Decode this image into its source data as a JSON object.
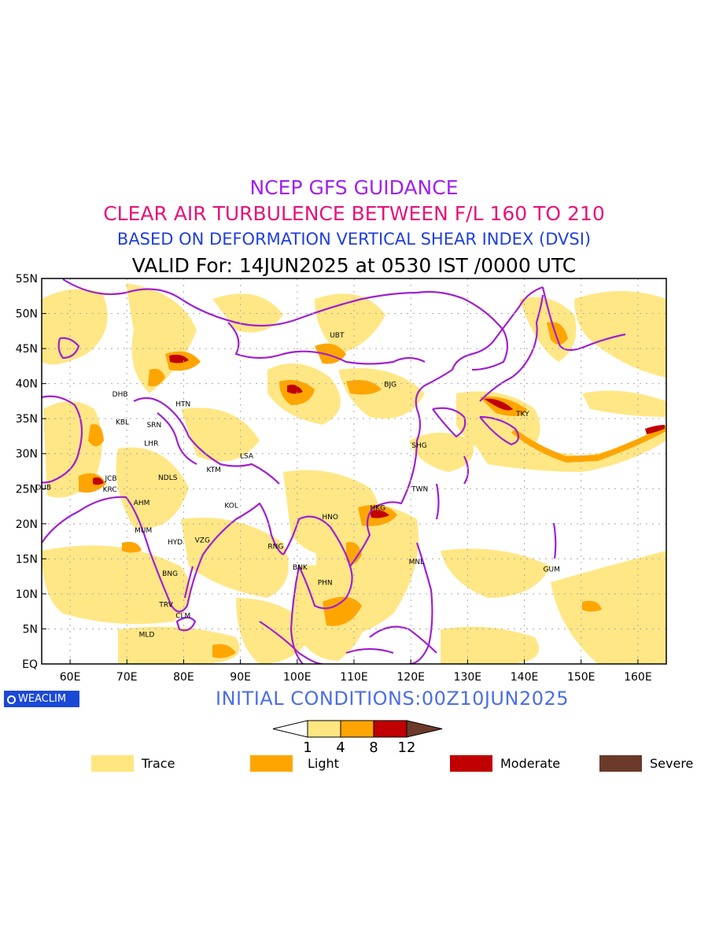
{
  "titles": {
    "line1": "NCEP GFS GUIDANCE",
    "line2": "CLEAR AIR TURBULENCE BETWEEN F/L 160 TO 210",
    "line3": "BASED ON DEFORMATION VERTICAL SHEAR INDEX (DVSI)",
    "line4": "VALID For: 14JUN2025 at 0530 IST /0000 UTC"
  },
  "initial_conditions": "INITIAL CONDITIONS:00Z10JUN2025",
  "logo_text": "WEACLIM",
  "map": {
    "lon_range": [
      55,
      165
    ],
    "lat_range": [
      0,
      55
    ],
    "lon_ticks": [
      "60E",
      "70E",
      "80E",
      "90E",
      "100E",
      "110E",
      "120E",
      "130E",
      "140E",
      "150E",
      "160E"
    ],
    "lat_ticks": [
      "55N",
      "50N",
      "45N",
      "40N",
      "35N",
      "30N",
      "25N",
      "20N",
      "15N",
      "10N",
      "5N",
      "EQ"
    ],
    "coast_color": "#a020d0",
    "stations": [
      {
        "code": "UBT",
        "lon": 107,
        "lat": 46.9
      },
      {
        "code": "BJG",
        "lon": 116.4,
        "lat": 39.9
      },
      {
        "code": "DHB",
        "lon": 68.8,
        "lat": 38.5
      },
      {
        "code": "HTN",
        "lon": 79.9,
        "lat": 37.1
      },
      {
        "code": "KBL",
        "lon": 69.2,
        "lat": 34.5
      },
      {
        "code": "SRN",
        "lon": 74.8,
        "lat": 34.1
      },
      {
        "code": "TKY",
        "lon": 139.7,
        "lat": 35.7
      },
      {
        "code": "LHR",
        "lon": 74.3,
        "lat": 31.5
      },
      {
        "code": "SHG",
        "lon": 121.5,
        "lat": 31.2
      },
      {
        "code": "LSA",
        "lon": 91.1,
        "lat": 29.7
      },
      {
        "code": "JCB",
        "lon": 67.2,
        "lat": 26.5
      },
      {
        "code": "NDLS",
        "lon": 77.2,
        "lat": 26.6
      },
      {
        "code": "KTM",
        "lon": 85.3,
        "lat": 27.7
      },
      {
        "code": "DUB",
        "lon": 55.3,
        "lat": 25.2
      },
      {
        "code": "KRC",
        "lon": 67.0,
        "lat": 24.9
      },
      {
        "code": "TWN",
        "lon": 121.6,
        "lat": 25.0
      },
      {
        "code": "AHM",
        "lon": 72.6,
        "lat": 23.0
      },
      {
        "code": "KOL",
        "lon": 88.4,
        "lat": 22.6
      },
      {
        "code": "HKG",
        "lon": 114.2,
        "lat": 22.3
      },
      {
        "code": "HNO",
        "lon": 105.8,
        "lat": 21.0
      },
      {
        "code": "MUM",
        "lon": 72.9,
        "lat": 19.1
      },
      {
        "code": "HYD",
        "lon": 78.5,
        "lat": 17.4
      },
      {
        "code": "VZG",
        "lon": 83.3,
        "lat": 17.7
      },
      {
        "code": "RNG",
        "lon": 96.2,
        "lat": 16.8
      },
      {
        "code": "MNL",
        "lon": 121.0,
        "lat": 14.6
      },
      {
        "code": "BNK",
        "lon": 100.5,
        "lat": 13.8
      },
      {
        "code": "GUM",
        "lon": 144.8,
        "lat": 13.5
      },
      {
        "code": "BNG",
        "lon": 77.6,
        "lat": 12.9
      },
      {
        "code": "PHN",
        "lon": 104.9,
        "lat": 11.6
      },
      {
        "code": "TRV",
        "lon": 76.9,
        "lat": 8.5
      },
      {
        "code": "CLM",
        "lon": 79.9,
        "lat": 6.9
      },
      {
        "code": "MLD",
        "lon": 73.5,
        "lat": 4.2
      }
    ]
  },
  "colorbar": {
    "levels": [
      "1",
      "4",
      "8",
      "12"
    ],
    "colors": [
      "#ffffff",
      "#ffe680",
      "#ffa500",
      "#c00000",
      "#6b3a2a"
    ]
  },
  "legend": [
    {
      "label": "Trace",
      "color": "#ffe680"
    },
    {
      "label": "Light",
      "color": "#ffa500"
    },
    {
      "label": "Moderate",
      "color": "#c00000"
    },
    {
      "label": "Severe",
      "color": "#6b3a2a"
    }
  ]
}
